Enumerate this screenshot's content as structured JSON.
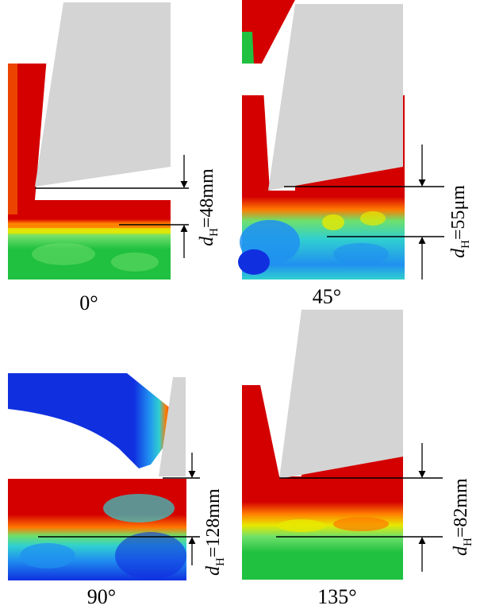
{
  "panels": [
    {
      "angle": "0°",
      "depth_label": "=48mm",
      "depth_value": 48,
      "depth_unit": "mm"
    },
    {
      "angle": "45°",
      "depth_label": "=55μm",
      "depth_value": 55,
      "depth_unit": "μm"
    },
    {
      "angle": "90°",
      "depth_label": "=128mm",
      "depth_value": 128,
      "depth_unit": "mm"
    },
    {
      "angle": "135°",
      "depth_label": "=82mm",
      "depth_value": 82,
      "depth_unit": "mm"
    }
  ],
  "symbol": {
    "main": "d",
    "subscript": "H"
  },
  "colors": {
    "red": "#d40000",
    "orange": "#ff7a00",
    "yellow": "#e8e800",
    "light_green": "#6ee06a",
    "green": "#20c040",
    "cyan": "#30d0d0",
    "light_blue": "#2090f0",
    "blue": "#1030e0",
    "tool": "#d4d4d4"
  }
}
